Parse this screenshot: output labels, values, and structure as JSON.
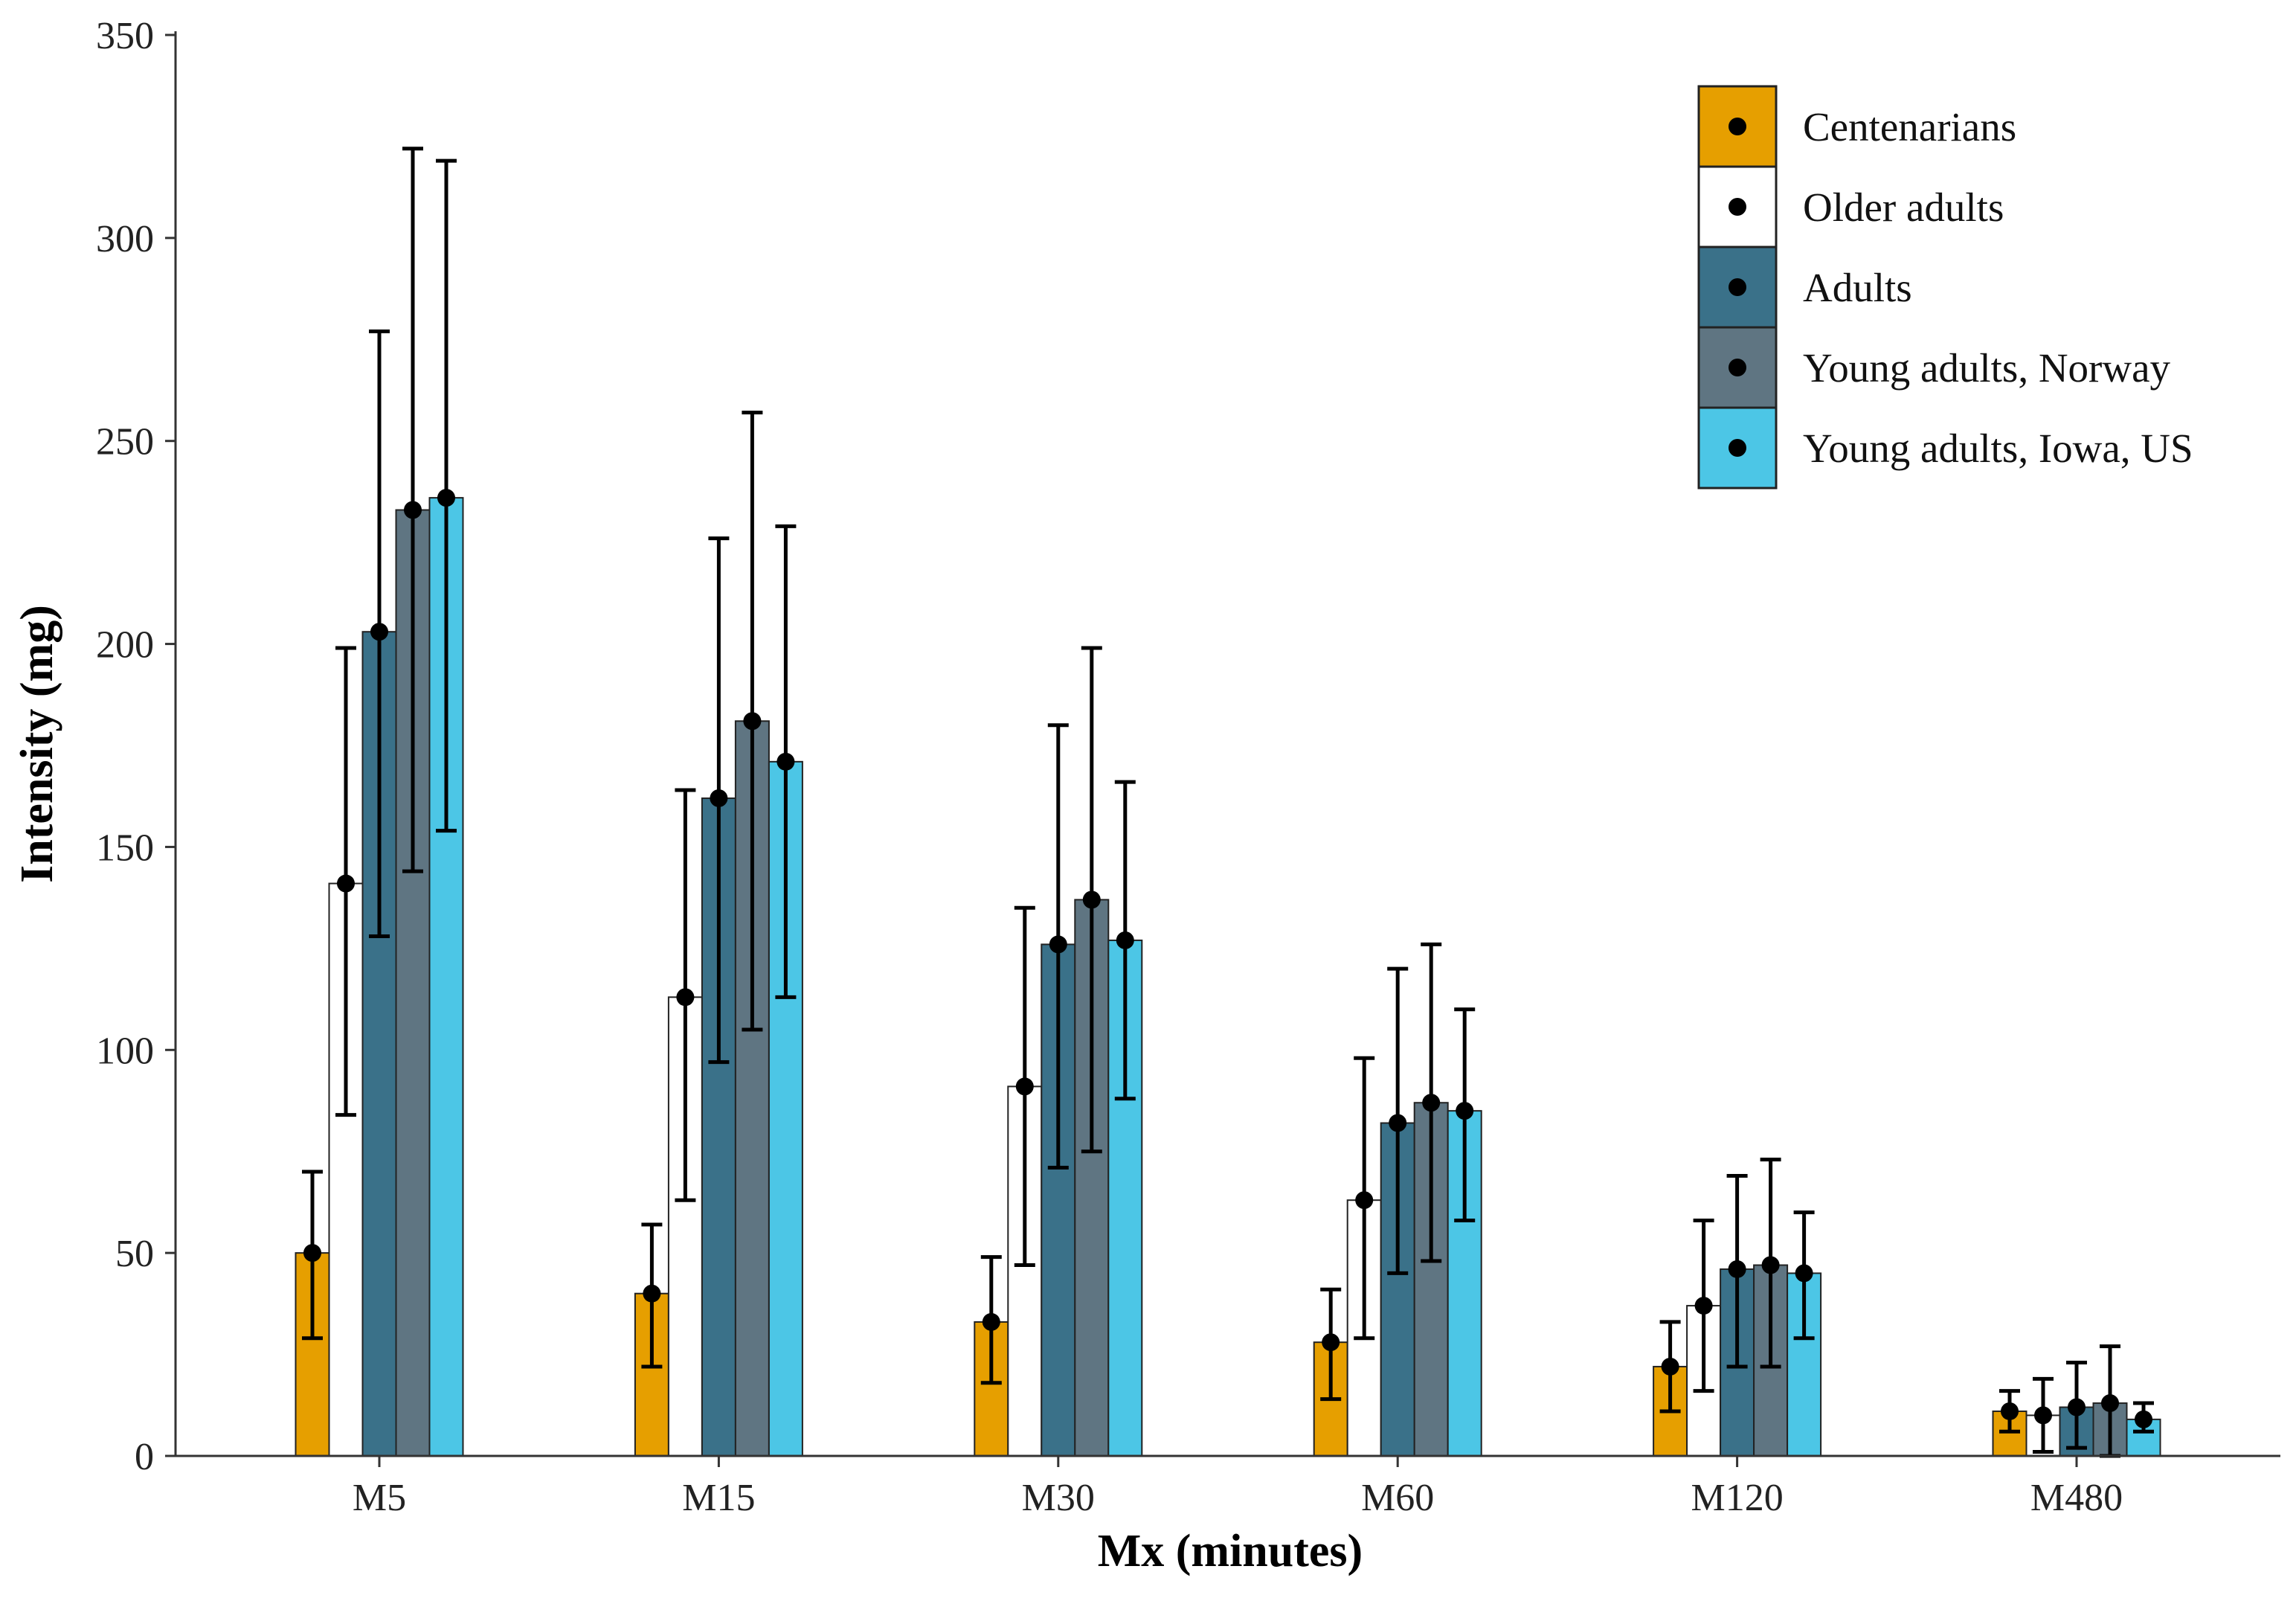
{
  "chart_data": {
    "type": "bar",
    "title": "",
    "xlabel": "Mx (minutes)",
    "ylabel": "Intensity (mg)",
    "ylim": [
      0,
      350
    ],
    "yticks": [
      0,
      50,
      100,
      150,
      200,
      250,
      300,
      350
    ],
    "grid": false,
    "legend_position": "top-right",
    "categories": [
      "M5",
      "M15",
      "M30",
      "M60",
      "M120",
      "M480"
    ],
    "series": [
      {
        "name": "Centenarians",
        "color": "#E69F00",
        "values": [
          50,
          40,
          33,
          28,
          22,
          11
        ],
        "err_low": [
          29,
          22,
          18,
          14,
          11,
          6
        ],
        "err_high": [
          70,
          57,
          49,
          41,
          33,
          16
        ]
      },
      {
        "name": "Older adults",
        "color": "#FFFFFF",
        "values": [
          141,
          113,
          91,
          63,
          37,
          10
        ],
        "err_low": [
          84,
          63,
          47,
          29,
          16,
          1
        ],
        "err_high": [
          199,
          164,
          135,
          98,
          58,
          19
        ]
      },
      {
        "name": "Adults",
        "color": "#3A7189",
        "values": [
          203,
          162,
          126,
          82,
          46,
          12
        ],
        "err_low": [
          128,
          97,
          71,
          45,
          22,
          2
        ],
        "err_high": [
          277,
          226,
          180,
          120,
          69,
          23
        ]
      },
      {
        "name": "Young adults, Norway",
        "color": "#5F7582",
        "values": [
          233,
          181,
          137,
          87,
          47,
          13
        ],
        "err_low": [
          144,
          105,
          75,
          48,
          22,
          0
        ],
        "err_high": [
          322,
          257,
          199,
          126,
          73,
          27
        ]
      },
      {
        "name": "Young adults, Iowa, US",
        "color": "#4CC6E6",
        "values": [
          236,
          171,
          127,
          85,
          45,
          9
        ],
        "err_low": [
          154,
          113,
          88,
          58,
          29,
          6
        ],
        "err_high": [
          319,
          229,
          166,
          110,
          60,
          13
        ]
      }
    ]
  }
}
